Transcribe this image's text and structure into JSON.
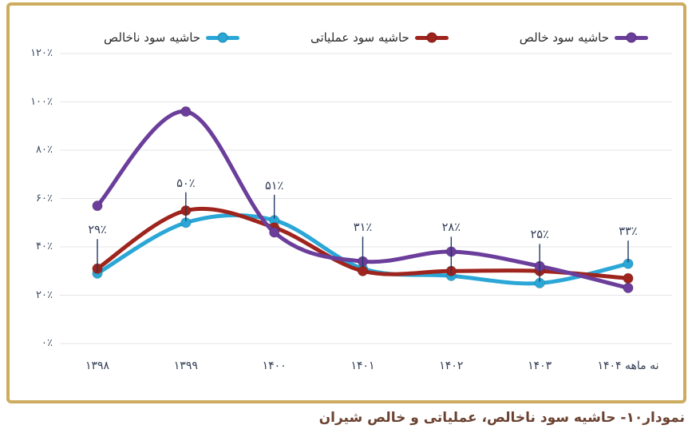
{
  "caption": "نمودار۱۰- حاشیه سود ناخالص، عملیاتی و خالص شیران",
  "colors": {
    "card_border": "#CDAC5F",
    "gridline": "#E4E4E4",
    "axis_text": "#3D4A63",
    "data_label_text": "#2F3B55",
    "leader_line": "#203864",
    "caption_text": "#6B4231",
    "gross_margin": "#2AA7D6",
    "operating_margin": "#9E241D",
    "net_margin": "#6B3E9B"
  },
  "chart_data": {
    "type": "line",
    "title": "",
    "categories": [
      "۱۳۹۸",
      "۱۳۹۹",
      "۱۴۰۰",
      "۱۴۰۱",
      "۱۴۰۲",
      "۱۴۰۳",
      "نه ماهه ۱۴۰۴"
    ],
    "series": [
      {
        "name": "حاشیه سود ناخالص",
        "color": "#2AA7D6",
        "values": [
          29,
          50,
          51,
          31,
          28,
          25,
          33
        ],
        "point_labels": [
          "۲۹٪",
          "۵۰٪",
          "۵۱٪",
          "۳۱٪",
          "۲۸٪",
          "۲۵٪",
          "۳۳٪"
        ],
        "point_label_dy": [
          53,
          48,
          42,
          50,
          59,
          59,
          39
        ]
      },
      {
        "name": "حاشیه سود عملیاتی",
        "color": "#9E241D",
        "values": [
          31,
          55,
          48,
          30,
          30,
          30,
          27
        ]
      },
      {
        "name": "حاشیه سود خالص",
        "color": "#6B3E9B",
        "values": [
          57,
          96,
          46,
          34,
          38,
          32,
          23
        ]
      }
    ],
    "ylim": [
      0,
      120
    ],
    "ytick_step": 20,
    "ytick_labels": [
      "۰٪",
      "۲۰٪",
      "۴۰٪",
      "۶۰٪",
      "۸۰٪",
      "۱۰۰٪",
      "۱۲۰٪"
    ],
    "grid": true,
    "legend_position": "top",
    "curve": "smooth",
    "markers": true
  }
}
